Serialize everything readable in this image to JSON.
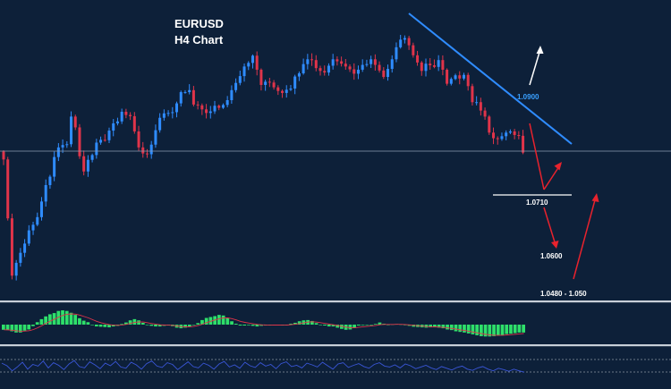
{
  "title_line1": "EURUSD",
  "title_line2": "H4 Chart",
  "colors": {
    "background": "#0d2039",
    "bull_candle": "#2f8cff",
    "bear_candle": "#e0344a",
    "trendline": "#2f8cff",
    "resistance_label": "#3aa0ff",
    "support_line": "#ffffff",
    "forecast_up": "#ffffff",
    "forecast_down": "#e8222d",
    "macd_hist": "#2ee06a",
    "separator": "#c8cfd8",
    "oscillator": "#3a56d8"
  },
  "annotations": {
    "resistance": "1.0900",
    "support": "1.0710",
    "target_1": "1.0600",
    "target_2": "1.0480 - 1.050"
  },
  "chart_data": {
    "type": "candlestick",
    "symbol": "EURUSD",
    "timeframe": "H4",
    "ylim": [
      1.04,
      1.115
    ],
    "close_values": [
      1.0752,
      1.0605,
      1.0462,
      1.0494,
      1.0519,
      1.0542,
      1.0575,
      1.0589,
      1.0608,
      1.0647,
      1.0688,
      1.0709,
      1.0758,
      1.0782,
      1.0788,
      1.079,
      1.0859,
      1.0832,
      1.076,
      1.0722,
      1.0751,
      1.0763,
      1.0794,
      1.0801,
      1.08,
      1.0824,
      1.0842,
      1.0847,
      1.0871,
      1.0863,
      1.086,
      1.0822,
      1.0782,
      1.0767,
      1.0765,
      1.0789,
      1.0825,
      1.0856,
      1.0867,
      1.0868,
      1.087,
      1.0892,
      1.092,
      1.092,
      1.0925,
      1.0889,
      1.0887,
      1.0877,
      1.0868,
      1.0872,
      1.0886,
      1.0881,
      1.0888,
      1.09,
      1.0925,
      1.0943,
      1.096,
      1.0984,
      1.0993,
      1.1011,
      1.0976,
      1.0938,
      1.0946,
      1.0944,
      1.0932,
      1.0923,
      1.0918,
      1.0926,
      1.0929,
      1.0959,
      1.0967,
      1.099,
      1.1002,
      1.1,
      1.098,
      1.0973,
      1.0969,
      1.0986,
      1.1002,
      1.0997,
      1.0991,
      1.0984,
      1.0977,
      1.0966,
      1.0976,
      1.0988,
      1.099,
      1.1002,
      1.0988,
      1.0974,
      1.0958,
      1.0978,
      1.1002,
      1.1032,
      1.1051,
      1.1055,
      1.1037,
      1.1012,
      1.0994,
      1.0973,
      1.0991,
      1.0987,
      1.0983,
      1.1,
      1.0976,
      1.0941,
      1.0953,
      1.0962,
      1.0954,
      1.0963,
      1.0935,
      1.0895,
      1.0895,
      1.0874,
      1.0859,
      1.0819,
      1.0805,
      1.0803,
      1.081,
      1.0819,
      1.0822,
      1.0813,
      1.0811,
      1.0769
    ]
  },
  "indicators": {
    "macd_histogram": [
      -1.7,
      -1.8,
      -2.2,
      -2.6,
      -2.6,
      -2.0,
      -1.6,
      -0.5,
      0.8,
      1.8,
      2.7,
      3.4,
      3.8,
      4.5,
      4.7,
      4.5,
      3.9,
      3.2,
      2.1,
      1.3,
      0.8,
      -0.1,
      -0.6,
      -0.7,
      -0.8,
      -0.9,
      -0.6,
      -0.4,
      0.2,
      0.7,
      1.4,
      1.8,
      1.4,
      0.6,
      -0.1,
      -0.4,
      -0.6,
      -0.6,
      -0.4,
      -0.3,
      -0.5,
      -1.0,
      -1.2,
      -1.0,
      -0.6,
      -0.1,
      0.5,
      1.5,
      2.2,
      2.5,
      2.8,
      3.2,
      3.0,
      2.2,
      1.1,
      0.3,
      -0.3,
      -0.3,
      -0.2,
      -0.4,
      -0.6,
      -0.4,
      -0.3,
      -0.3,
      -0.1,
      -0.1,
      -0.3,
      -0.1,
      0.3,
      0.6,
      1.1,
      1.4,
      1.5,
      1.2,
      0.5,
      0.0,
      -0.3,
      -0.6,
      -0.6,
      -1.0,
      -1.4,
      -1.7,
      -1.6,
      -1.1,
      -0.3,
      -0.2,
      -0.1,
      0.0,
      0.2,
      0.7,
      0.3,
      0.0,
      0.1,
      0.2,
      0.1,
      -0.2,
      -0.4,
      -0.7,
      -0.8,
      -0.9,
      -1.0,
      -0.9,
      -0.9,
      -1.0,
      -1.2,
      -1.6,
      -1.8,
      -2.2,
      -2.4,
      -2.6,
      -2.9,
      -3.2,
      -3.5,
      -3.8,
      -3.9,
      -3.9,
      -3.8,
      -3.6,
      -3.4,
      -3.1,
      -3.0,
      -2.8,
      -2.6,
      -2.6
    ],
    "oscillator": [
      0.58,
      0.46,
      0.22,
      0.4,
      0.62,
      0.3,
      0.52,
      0.44,
      0.68,
      0.36,
      0.6,
      0.48,
      0.28,
      0.54,
      0.7,
      0.42,
      0.36,
      0.64,
      0.5,
      0.32,
      0.58,
      0.46,
      0.66,
      0.4,
      0.34,
      0.62,
      0.5,
      0.3,
      0.56,
      0.68,
      0.44,
      0.38,
      0.6,
      0.52,
      0.28,
      0.46,
      0.64,
      0.42,
      0.36,
      0.58,
      0.48,
      0.3,
      0.54,
      0.66,
      0.4,
      0.5,
      0.34,
      0.62,
      0.46,
      0.38,
      0.6,
      0.44,
      0.52,
      0.32,
      0.56,
      0.64,
      0.42,
      0.48,
      0.36,
      0.58,
      0.5,
      0.4,
      0.62,
      0.46,
      0.3,
      0.54,
      0.6,
      0.38,
      0.48,
      0.56,
      0.42,
      0.34,
      0.52,
      0.6,
      0.44,
      0.4,
      0.5,
      0.36,
      0.54,
      0.46,
      0.32,
      0.4,
      0.48,
      0.36,
      0.28,
      0.42,
      0.34,
      0.26,
      0.38,
      0.44,
      0.3,
      0.24,
      0.36,
      0.42,
      0.3,
      0.22,
      0.34,
      0.28,
      0.2,
      0.3,
      0.22,
      0.16
    ]
  }
}
